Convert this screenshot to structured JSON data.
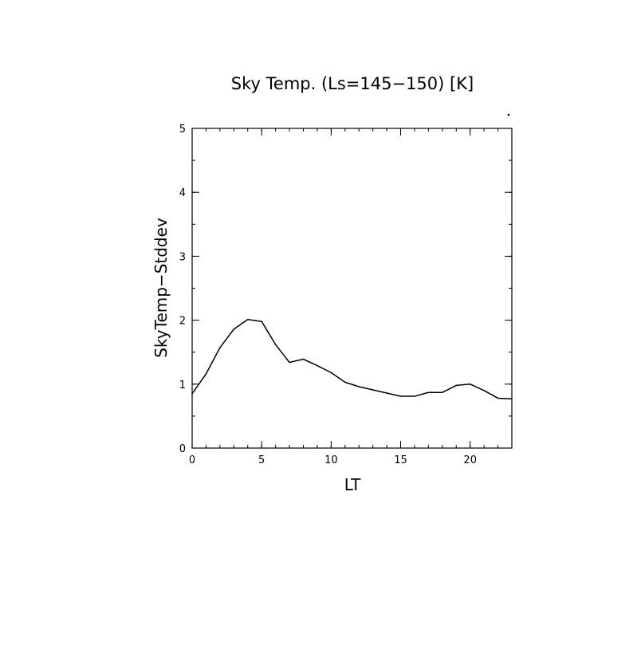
{
  "chart_data": {
    "type": "line",
    "title": "Sky Temp. (Ls=145−150) [K]",
    "xlabel": "LT",
    "ylabel": "SkyTemp−Stddev",
    "xlim": [
      0,
      23
    ],
    "ylim": [
      0,
      5
    ],
    "x_ticks": [
      0,
      5,
      10,
      15,
      20
    ],
    "y_ticks": [
      0,
      1,
      2,
      3,
      4,
      5
    ],
    "x_tick_labels": [
      "0",
      "5",
      "10",
      "15",
      "20"
    ],
    "y_tick_labels": [
      "0",
      "1",
      "2",
      "3",
      "4",
      "5"
    ],
    "x_minor_step": 1,
    "y_minor_step": 0.5,
    "grid": false,
    "series": [
      {
        "color": "#000000",
        "x": [
          0,
          1,
          2,
          3,
          4,
          5,
          6,
          7,
          8,
          9,
          10,
          11,
          12,
          13,
          14,
          15,
          16,
          17,
          18,
          19,
          20,
          21,
          22,
          23
        ],
        "y": [
          0.85,
          1.16,
          1.57,
          1.86,
          2.01,
          1.98,
          1.62,
          1.34,
          1.39,
          1.29,
          1.18,
          1.03,
          0.96,
          0.91,
          0.86,
          0.81,
          0.81,
          0.87,
          0.87,
          0.98,
          1.0,
          0.9,
          0.78,
          0.77
        ]
      }
    ]
  }
}
